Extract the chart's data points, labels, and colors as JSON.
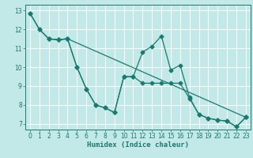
{
  "xlabel": "Humidex (Indice chaleur)",
  "bg_color": "#c2e8e8",
  "grid_color": "#ffffff",
  "line_color": "#1a7a6e",
  "xlim": [
    -0.5,
    23.5
  ],
  "ylim": [
    6.7,
    13.3
  ],
  "yticks": [
    7,
    8,
    9,
    10,
    11,
    12,
    13
  ],
  "xticks": [
    0,
    1,
    2,
    3,
    4,
    5,
    6,
    7,
    8,
    9,
    10,
    11,
    12,
    13,
    14,
    15,
    16,
    17,
    18,
    19,
    20,
    21,
    22,
    23
  ],
  "line1_x": [
    0,
    1,
    2,
    3,
    4,
    5,
    6,
    7,
    8,
    9,
    10,
    11,
    12,
    13,
    14,
    15,
    16,
    17,
    18,
    19,
    20,
    21,
    22,
    23
  ],
  "line1_y": [
    12.85,
    12.0,
    11.5,
    11.45,
    11.5,
    10.0,
    8.85,
    8.0,
    7.85,
    7.6,
    9.5,
    9.5,
    10.8,
    11.1,
    11.65,
    9.85,
    10.1,
    8.4,
    7.5,
    7.3,
    7.2,
    7.15,
    6.85,
    7.35
  ],
  "line2_x": [
    0,
    1,
    2,
    3,
    4,
    5,
    6,
    7,
    8,
    9,
    10,
    11,
    12,
    13,
    14,
    15,
    16,
    17,
    18,
    19,
    20,
    21,
    22,
    23
  ],
  "line2_y": [
    12.85,
    12.0,
    11.5,
    11.45,
    11.5,
    10.0,
    8.85,
    8.0,
    7.85,
    7.6,
    9.5,
    9.5,
    9.15,
    9.15,
    9.15,
    9.15,
    9.15,
    8.35,
    7.5,
    7.3,
    7.2,
    7.15,
    6.85,
    7.35
  ],
  "line3_x": [
    2,
    3,
    4,
    23
  ],
  "line3_y": [
    11.5,
    11.45,
    11.5,
    7.35
  ]
}
